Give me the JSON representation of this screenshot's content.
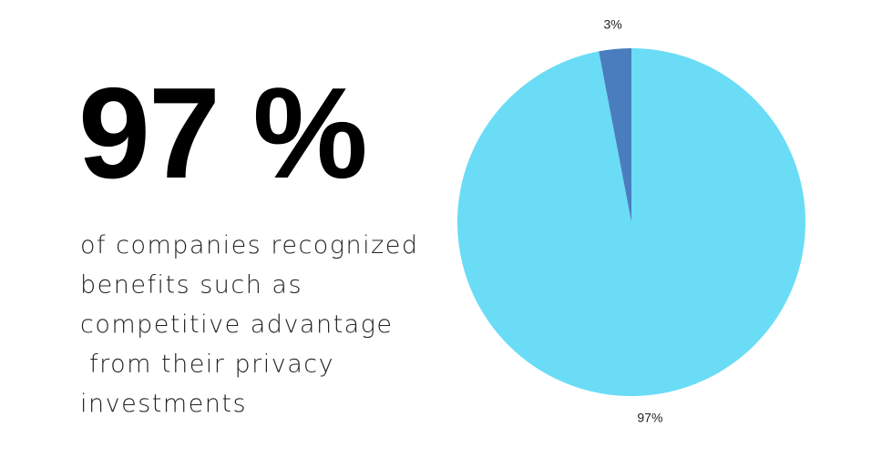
{
  "headline": "97 %",
  "description": [
    "of companies recognized",
    "benefits such as",
    "competitive advantage",
    " from their privacy",
    "investments"
  ],
  "chart_data": {
    "type": "pie",
    "categories": [
      "97%",
      "3%"
    ],
    "values": [
      97,
      3
    ],
    "value_labels": [
      "97%",
      "3%"
    ],
    "colors": [
      "#6adcf6",
      "#4a7dbd"
    ]
  }
}
